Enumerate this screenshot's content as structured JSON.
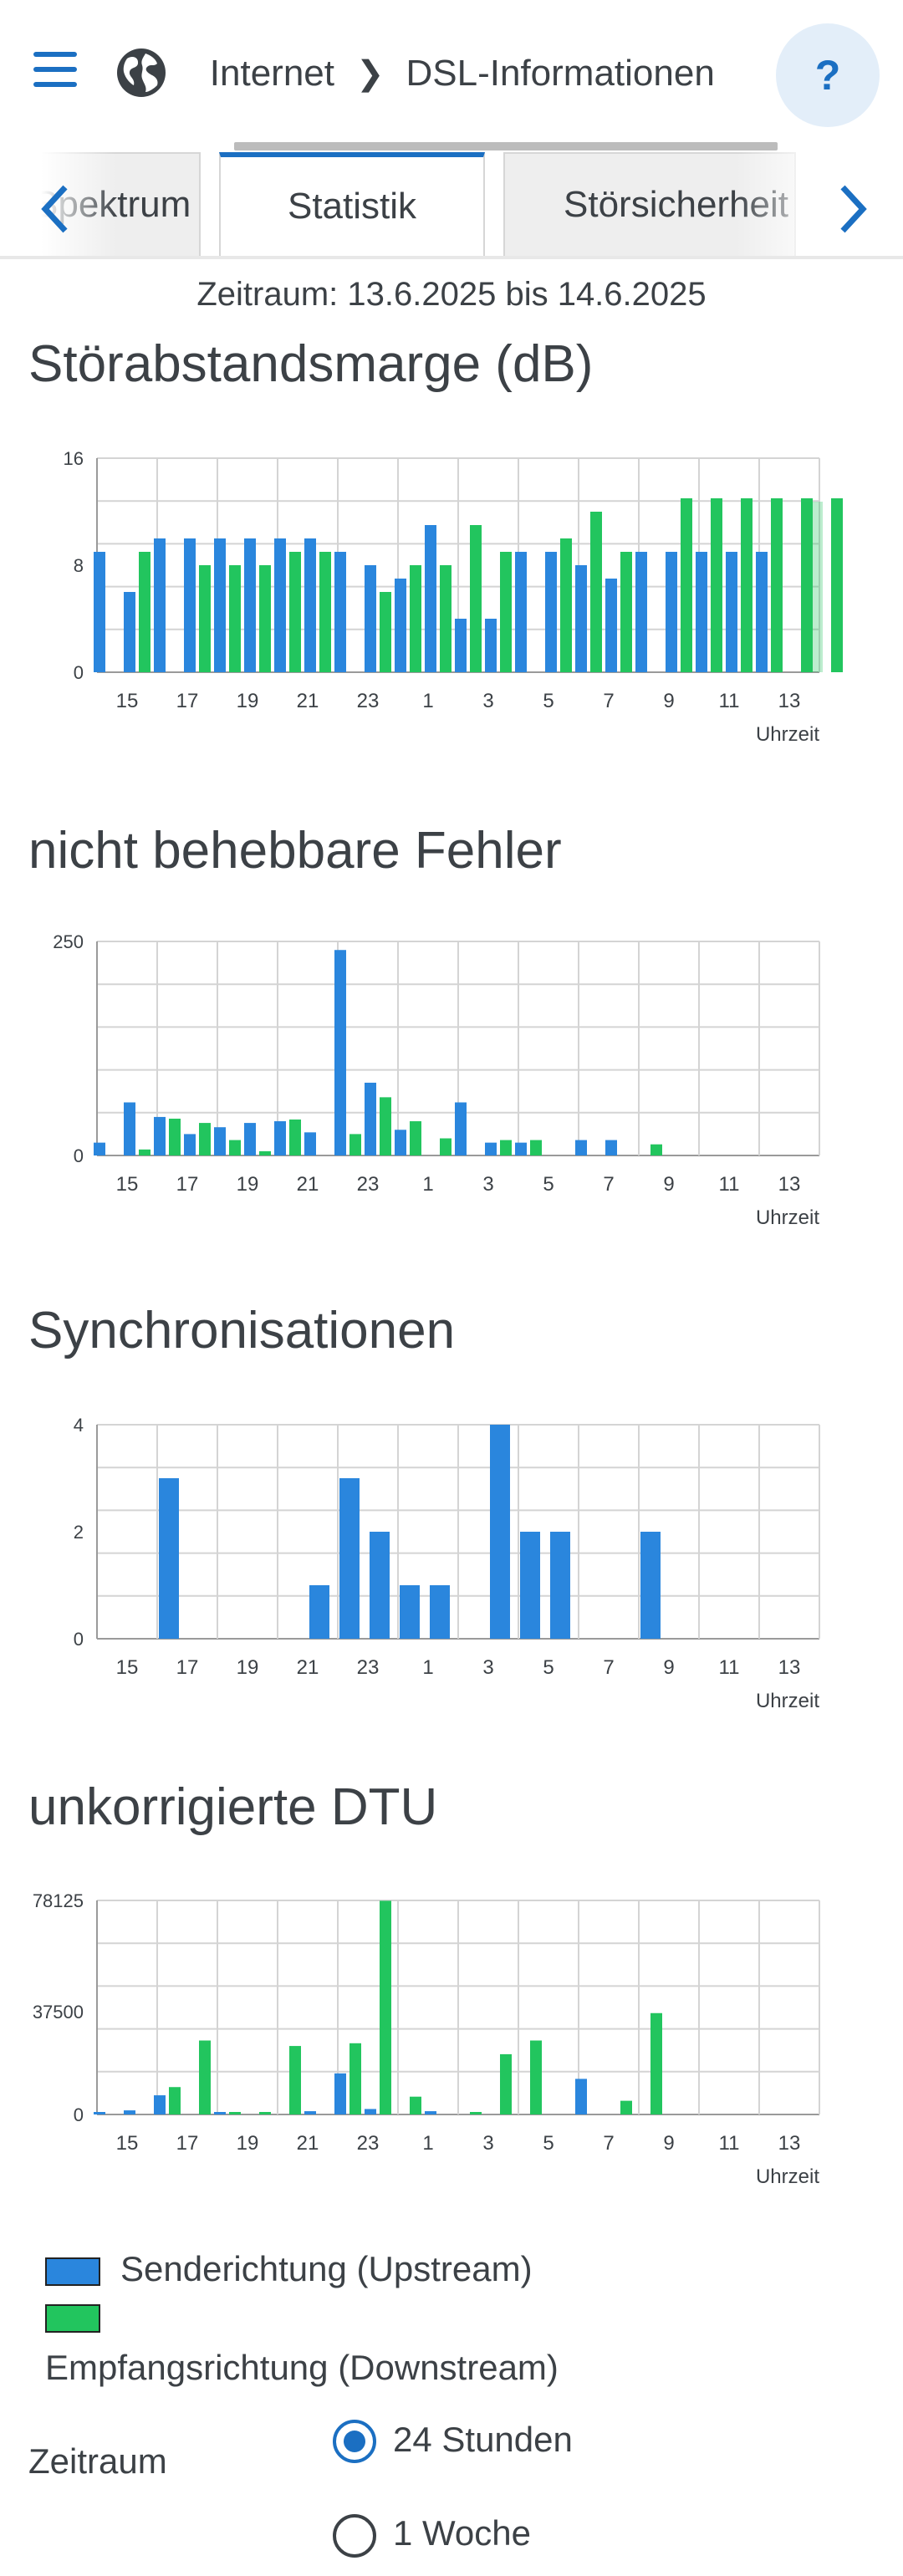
{
  "header": {
    "breadcrumb_first": "Internet",
    "breadcrumb_current": "DSL-Informationen",
    "help_label": "?"
  },
  "tabs": {
    "left_label": "Spektrum",
    "active_label": "Statistik",
    "right_label": "Störsicherheit"
  },
  "period_text": "Zeitraum: 13.6.2025 bis 14.6.2025",
  "colors": {
    "upstream": "#2a86dd",
    "downstream": "#22c55e",
    "accent": "#1b6fc2"
  },
  "chart_data": [
    {
      "type": "bar",
      "title": "Störabstandsmarge (dB)",
      "xlabel": "Uhrzeit",
      "x_ticks": [
        "15",
        "17",
        "19",
        "21",
        "23",
        "1",
        "3",
        "5",
        "7",
        "9",
        "11",
        "13"
      ],
      "y_ticks": [
        "0",
        "8",
        "16"
      ],
      "ylim": [
        0,
        16
      ],
      "categories": [
        "14",
        "15",
        "16",
        "17",
        "18",
        "19",
        "20",
        "21",
        "22",
        "23",
        "0",
        "1",
        "2",
        "3",
        "4",
        "5",
        "6",
        "7",
        "8",
        "9",
        "10",
        "11",
        "12",
        "13",
        "14"
      ],
      "series": [
        {
          "name": "Senderichtung (Upstream)",
          "color": "#2a86dd",
          "values": [
            9,
            6,
            10,
            10,
            10,
            10,
            10,
            10,
            9,
            8,
            7,
            11,
            4,
            4,
            9,
            9,
            8,
            7,
            9,
            9,
            9,
            9,
            9,
            null,
            null
          ]
        },
        {
          "name": "Empfangsrichtung (Downstream)",
          "color": "#22c55e",
          "values": [
            null,
            9,
            null,
            8,
            8,
            8,
            9,
            9,
            null,
            6,
            8,
            8,
            11,
            9,
            null,
            10,
            12,
            9,
            null,
            13,
            13,
            13,
            13,
            13,
            13
          ]
        }
      ],
      "grid": true
    },
    {
      "type": "bar",
      "title": "nicht behebbare Fehler",
      "xlabel": "Uhrzeit",
      "x_ticks": [
        "15",
        "17",
        "19",
        "21",
        "23",
        "1",
        "3",
        "5",
        "7",
        "9",
        "11",
        "13"
      ],
      "y_ticks": [
        "0",
        "250"
      ],
      "ylim": [
        0,
        250
      ],
      "categories": [
        "14",
        "15",
        "16",
        "17",
        "18",
        "19",
        "20",
        "21",
        "22",
        "23",
        "0",
        "1",
        "2",
        "3",
        "4",
        "5",
        "6",
        "7",
        "8",
        "9",
        "10",
        "11",
        "12",
        "13"
      ],
      "series": [
        {
          "name": "Senderichtung (Upstream)",
          "color": "#2a86dd",
          "values": [
            15,
            62,
            45,
            25,
            33,
            38,
            40,
            27,
            240,
            85,
            30,
            0,
            62,
            15,
            15,
            0,
            18,
            18,
            0,
            0,
            0,
            0,
            0,
            0
          ]
        },
        {
          "name": "Empfangsrichtung (Downstream)",
          "color": "#22c55e",
          "values": [
            0,
            7,
            43,
            38,
            18,
            5,
            42,
            0,
            25,
            68,
            40,
            20,
            0,
            18,
            18,
            0,
            0,
            0,
            13,
            0,
            0,
            0,
            0,
            0
          ]
        }
      ],
      "grid": true
    },
    {
      "type": "bar",
      "title": "Synchronisationen",
      "xlabel": "Uhrzeit",
      "x_ticks": [
        "15",
        "17",
        "19",
        "21",
        "23",
        "1",
        "3",
        "5",
        "7",
        "9",
        "11",
        "13"
      ],
      "y_ticks": [
        "0",
        "2",
        "4"
      ],
      "ylim": [
        0,
        4
      ],
      "categories": [
        "14",
        "15",
        "16",
        "17",
        "18",
        "19",
        "20",
        "21",
        "22",
        "23",
        "0",
        "1",
        "2",
        "3",
        "4",
        "5",
        "6",
        "7",
        "8",
        "9",
        "10",
        "11",
        "12",
        "13"
      ],
      "series": [
        {
          "name": "Senderichtung (Upstream)",
          "color": "#2a86dd",
          "values": [
            0,
            0,
            3,
            0,
            0,
            0,
            0,
            1,
            3,
            2,
            1,
            1,
            0,
            4,
            2,
            2,
            0,
            0,
            2,
            0,
            0,
            0,
            0,
            0
          ]
        }
      ],
      "grid": true
    },
    {
      "type": "bar",
      "title": "unkorrigierte DTU",
      "xlabel": "Uhrzeit",
      "x_ticks": [
        "15",
        "17",
        "19",
        "21",
        "23",
        "1",
        "3",
        "5",
        "7",
        "9",
        "11",
        "13"
      ],
      "y_ticks": [
        "0",
        "37500",
        "78125"
      ],
      "ylim": [
        0,
        78125
      ],
      "categories": [
        "14",
        "15",
        "16",
        "17",
        "18",
        "19",
        "20",
        "21",
        "22",
        "23",
        "0",
        "1",
        "2",
        "3",
        "4",
        "5",
        "6",
        "7",
        "8",
        "9",
        "10",
        "11",
        "12",
        "13"
      ],
      "series": [
        {
          "name": "Senderichtung (Upstream)",
          "color": "#2a86dd",
          "values": [
            400,
            1500,
            7000,
            0,
            400,
            0,
            0,
            1200,
            15000,
            2000,
            0,
            1200,
            0,
            0,
            0,
            0,
            13000,
            0,
            0,
            0,
            0,
            0,
            0,
            0
          ]
        },
        {
          "name": "Empfangsrichtung (Downstream)",
          "color": "#22c55e",
          "values": [
            0,
            0,
            10000,
            27000,
            500,
            500,
            25000,
            0,
            26000,
            78000,
            6500,
            0,
            500,
            22000,
            27000,
            0,
            0,
            5000,
            37000,
            0,
            0,
            0,
            0,
            0
          ]
        }
      ],
      "grid": true
    }
  ],
  "legend": {
    "upstream_label": "Senderichtung (Upstream)",
    "downstream_label": "Empfangsrichtung (Downstream)"
  },
  "period_selector": {
    "label": "Zeitraum",
    "options": [
      "24 Stunden",
      "1 Woche"
    ],
    "selected": "24 Stunden"
  }
}
